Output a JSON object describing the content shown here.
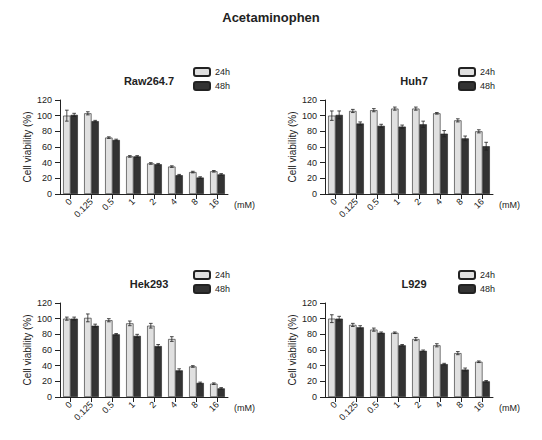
{
  "title": "Acetaminophen",
  "chart_data": [
    {
      "type": "bar",
      "title": "Raw264.7",
      "categories": [
        "0",
        "0.125",
        "0.5",
        "1",
        "2",
        "4",
        "8",
        "16"
      ],
      "x_label": "(mM)",
      "y_label": "Cell viability (%)",
      "ylim": [
        0,
        120
      ],
      "yticks": [
        0,
        20,
        40,
        60,
        80,
        100,
        120
      ],
      "grid": false,
      "legend": "top-right",
      "series": [
        {
          "name": "24h",
          "color": "#e0e0e0",
          "values": [
            100,
            103,
            72,
            48,
            39,
            35,
            28,
            29
          ],
          "errors": [
            7,
            2,
            1,
            1,
            1,
            1,
            1,
            1
          ]
        },
        {
          "name": "48h",
          "color": "#333333",
          "values": [
            101,
            93,
            69,
            48,
            38,
            24,
            21,
            25
          ],
          "errors": [
            2,
            1,
            1,
            1,
            1,
            1,
            1,
            1
          ]
        }
      ]
    },
    {
      "type": "bar",
      "title": "Huh7",
      "categories": [
        "0",
        "0.125",
        "0.5",
        "1",
        "2",
        "4",
        "8",
        "16"
      ],
      "x_label": "(mM)",
      "y_label": "Cell viability (%)",
      "ylim": [
        0,
        120
      ],
      "yticks": [
        0,
        20,
        40,
        60,
        80,
        100,
        120
      ],
      "grid": false,
      "legend": "top-right",
      "series": [
        {
          "name": "24h",
          "color": "#e0e0e0",
          "values": [
            100,
            106,
            107,
            109,
            109,
            103,
            94,
            80
          ],
          "errors": [
            6,
            2,
            2,
            2,
            2,
            1,
            2,
            2
          ]
        },
        {
          "name": "48h",
          "color": "#333333",
          "values": [
            101,
            90,
            87,
            86,
            89,
            77,
            71,
            61
          ],
          "errors": [
            5,
            2,
            2,
            2,
            4,
            4,
            3,
            5
          ]
        }
      ]
    },
    {
      "type": "bar",
      "title": "Hek293",
      "categories": [
        "0",
        "0.125",
        "0.5",
        "1",
        "2",
        "4",
        "8",
        "16"
      ],
      "x_label": "(mM)",
      "y_label": "Cell viability (%)",
      "ylim": [
        0,
        120
      ],
      "yticks": [
        0,
        20,
        40,
        60,
        80,
        100,
        120
      ],
      "grid": false,
      "legend": "top-right",
      "series": [
        {
          "name": "24h",
          "color": "#e0e0e0",
          "values": [
            100,
            101,
            98,
            94,
            91,
            74,
            39,
            17
          ],
          "errors": [
            2,
            5,
            2,
            3,
            3,
            3,
            1,
            1
          ]
        },
        {
          "name": "48h",
          "color": "#333333",
          "values": [
            100,
            91,
            80,
            78,
            65,
            34,
            18,
            11
          ],
          "errors": [
            2,
            2,
            1,
            2,
            2,
            2,
            1,
            1
          ]
        }
      ]
    },
    {
      "type": "bar",
      "title": "L929",
      "categories": [
        "0",
        "0.125",
        "0.5",
        "1",
        "2",
        "4",
        "8",
        "16"
      ],
      "x_label": "(mM)",
      "y_label": "Cell viability (%)",
      "ylim": [
        0,
        120
      ],
      "yticks": [
        0,
        20,
        40,
        60,
        80,
        100,
        120
      ],
      "grid": false,
      "legend": "top-right",
      "series": [
        {
          "name": "24h",
          "color": "#e0e0e0",
          "values": [
            100,
            92,
            86,
            82,
            74,
            66,
            56,
            45
          ],
          "errors": [
            5,
            2,
            2,
            1,
            2,
            2,
            2,
            1
          ]
        },
        {
          "name": "48h",
          "color": "#333333",
          "values": [
            100,
            89,
            82,
            66,
            59,
            42,
            35,
            20
          ],
          "errors": [
            3,
            2,
            1,
            1,
            1,
            1,
            2,
            1
          ]
        }
      ]
    }
  ]
}
